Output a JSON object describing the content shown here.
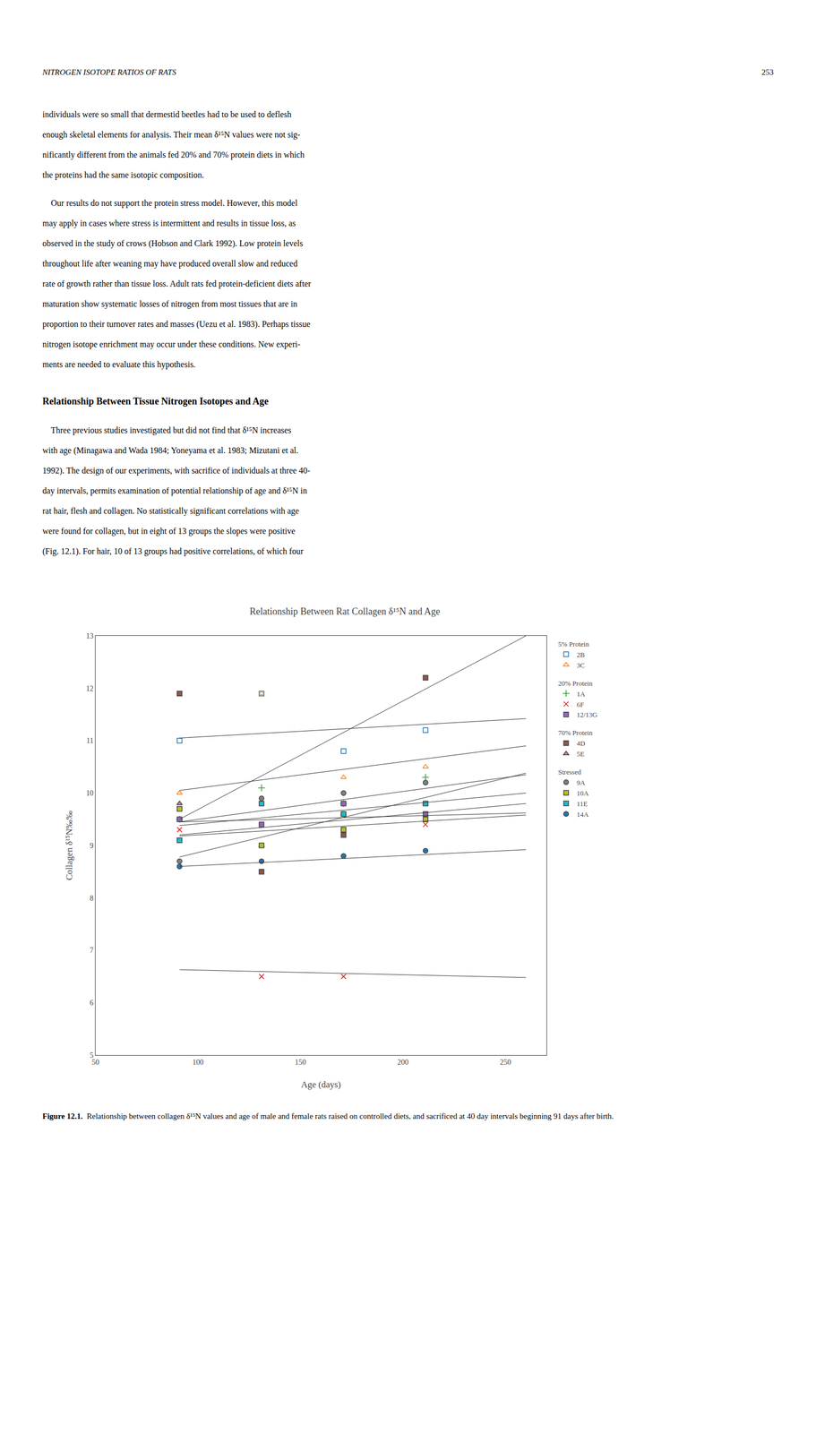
{
  "page_header_left": "NITROGEN ISOTOPE RATIOS OF RATS",
  "page_header_right": "253",
  "body_para1": [
    "individuals were so small that dermestid beetles had to be used to deflesh",
    "enough skeletal elements for analysis. Their mean δ¹⁵N values were not sig-",
    "nificantly different from the animals fed 20% and 70% protein diets in which",
    "the proteins had the same isotopic composition."
  ],
  "body_para2": [
    "    Our results do not support the protein stress model. However, this model",
    "may apply in cases where stress is intermittent and results in tissue loss, as",
    "observed in the study of crows (Hobson and Clark 1992). Low protein levels",
    "throughout life after weaning may have produced overall slow and reduced",
    "rate of growth rather than tissue loss. Adult rats fed protein-deficient diets after",
    "maturation show systematic losses of nitrogen from most tissues that are in",
    "proportion to their turnover rates and masses (Uezu et al. 1983). Perhaps tissue",
    "nitrogen isotope enrichment may occur under these conditions. New experi-",
    "ments are needed to evaluate this hypothesis."
  ],
  "section_heading": "Relationship Between Tissue Nitrogen Isotopes and Age",
  "body_para3": [
    "    Three previous studies investigated but did not find that δ¹⁵N increases",
    "with age (Minagawa and Wada 1984; Yoneyama et al. 1983; Mizutani et al.",
    "1992). The design of our experiments, with sacrifice of individuals at three 40-",
    "day intervals, permits examination of potential relationship of age and δ¹⁵N in",
    "rat hair, flesh and collagen. No statistically significant correlations with age",
    "were found for collagen, but in eight of 13 groups the slopes were positive",
    "(Fig. 12.1). For hair, 10 of 13 groups had positive correlations, of which four"
  ],
  "caption_bold": "Figure 12.1.",
  "caption_normal": "  Relationship between collagen δ¹⁵N values and age of male and female rats raised on controlled diets, and sacrificed at 40 day intervals beginning 91 days after birth.",
  "chart_data": {
    "type": "scatter",
    "title": "Relationship Between Rat Collagen δ¹⁵N and Age",
    "xlabel": "Age (days)",
    "ylabel": "Collagen δ¹⁵N‰‰",
    "xlim": [
      50,
      270
    ],
    "ylim": [
      5,
      13
    ],
    "xticks": [
      50,
      100,
      150,
      200,
      250
    ],
    "yticks": [
      5,
      6,
      7,
      8,
      9,
      10,
      11,
      12,
      13
    ],
    "grid": false,
    "legend": "right",
    "series": [
      {
        "name": "2B",
        "group": "5% Protein",
        "marker": "square-open",
        "x": [
          91,
          131,
          171,
          211
        ],
        "values": [
          11.0,
          11.9,
          10.8,
          11.2
        ],
        "fit": {
          "x": [
            91,
            260
          ],
          "values": [
            11.05,
            11.42
          ]
        }
      },
      {
        "name": "3C",
        "group": "5% Protein",
        "marker": "triangle-open",
        "x": [
          91,
          131,
          171,
          211
        ],
        "values": [
          10.0,
          11.9,
          10.3,
          10.5
        ],
        "fit": {
          "x": [
            91,
            260
          ],
          "values": [
            10.05,
            10.9
          ]
        }
      },
      {
        "name": "1A",
        "group": "20% Protein",
        "marker": "plus",
        "x": [
          91,
          131,
          171,
          211
        ],
        "values": [
          9.5,
          10.1,
          9.8,
          10.3
        ],
        "fit": {
          "x": [
            91,
            260
          ],
          "values": [
            9.45,
            10.35
          ]
        }
      },
      {
        "name": "6F",
        "group": "20% Protein",
        "marker": "x",
        "x": [
          91,
          131,
          171,
          211
        ],
        "values": [
          9.3,
          6.5,
          6.5,
          9.4
        ],
        "fit": {
          "x": [
            91,
            260
          ],
          "values": [
            6.63,
            6.48
          ]
        }
      },
      {
        "name": "12/13G",
        "group": "20% Protein",
        "marker": "square",
        "x": [
          91,
          131,
          171,
          211
        ],
        "values": [
          9.5,
          9.4,
          9.8,
          9.6
        ],
        "fit": {
          "x": [
            91,
            260
          ],
          "values": [
            9.45,
            9.62
          ]
        }
      },
      {
        "name": "4D",
        "group": "70% Protein",
        "marker": "square",
        "x": [
          91,
          131,
          171,
          211
        ],
        "values": [
          11.9,
          8.5,
          9.2,
          12.2
        ],
        "fit": {
          "x": [
            91,
            260
          ],
          "values": [
            9.5,
            13.0
          ]
        }
      },
      {
        "name": "5E",
        "group": "70% Protein",
        "marker": "triangle",
        "x": [
          91,
          131,
          171,
          211
        ],
        "values": [
          9.8,
          9.0,
          9.6,
          9.8
        ],
        "fit": {
          "x": [
            91,
            260
          ],
          "values": [
            9.38,
            10.0
          ]
        }
      },
      {
        "name": "9A",
        "group": "Stressed",
        "marker": "circle",
        "x": [
          91,
          131,
          171,
          211
        ],
        "values": [
          8.7,
          9.9,
          10.0,
          10.2
        ],
        "fit": {
          "x": [
            91,
            260
          ],
          "values": [
            8.78,
            10.38
          ]
        }
      },
      {
        "name": "10A",
        "group": "Stressed",
        "marker": "square",
        "x": [
          91,
          131,
          171,
          211
        ],
        "values": [
          9.7,
          9.0,
          9.3,
          9.5
        ],
        "fit": {
          "x": [
            91,
            260
          ],
          "values": [
            9.18,
            9.58
          ]
        }
      },
      {
        "name": "11E",
        "group": "Stressed",
        "marker": "square",
        "x": [
          91,
          131,
          171,
          211
        ],
        "values": [
          9.1,
          9.8,
          9.6,
          9.8
        ],
        "fit": {
          "x": [
            91,
            260
          ],
          "values": [
            9.2,
            9.8
          ]
        }
      },
      {
        "name": "14A",
        "group": "Stressed",
        "marker": "circle",
        "x": [
          91,
          131,
          171,
          211
        ],
        "values": [
          8.6,
          8.7,
          8.8,
          8.9
        ],
        "fit": {
          "x": [
            91,
            260
          ],
          "values": [
            8.6,
            8.92
          ]
        }
      }
    ]
  }
}
